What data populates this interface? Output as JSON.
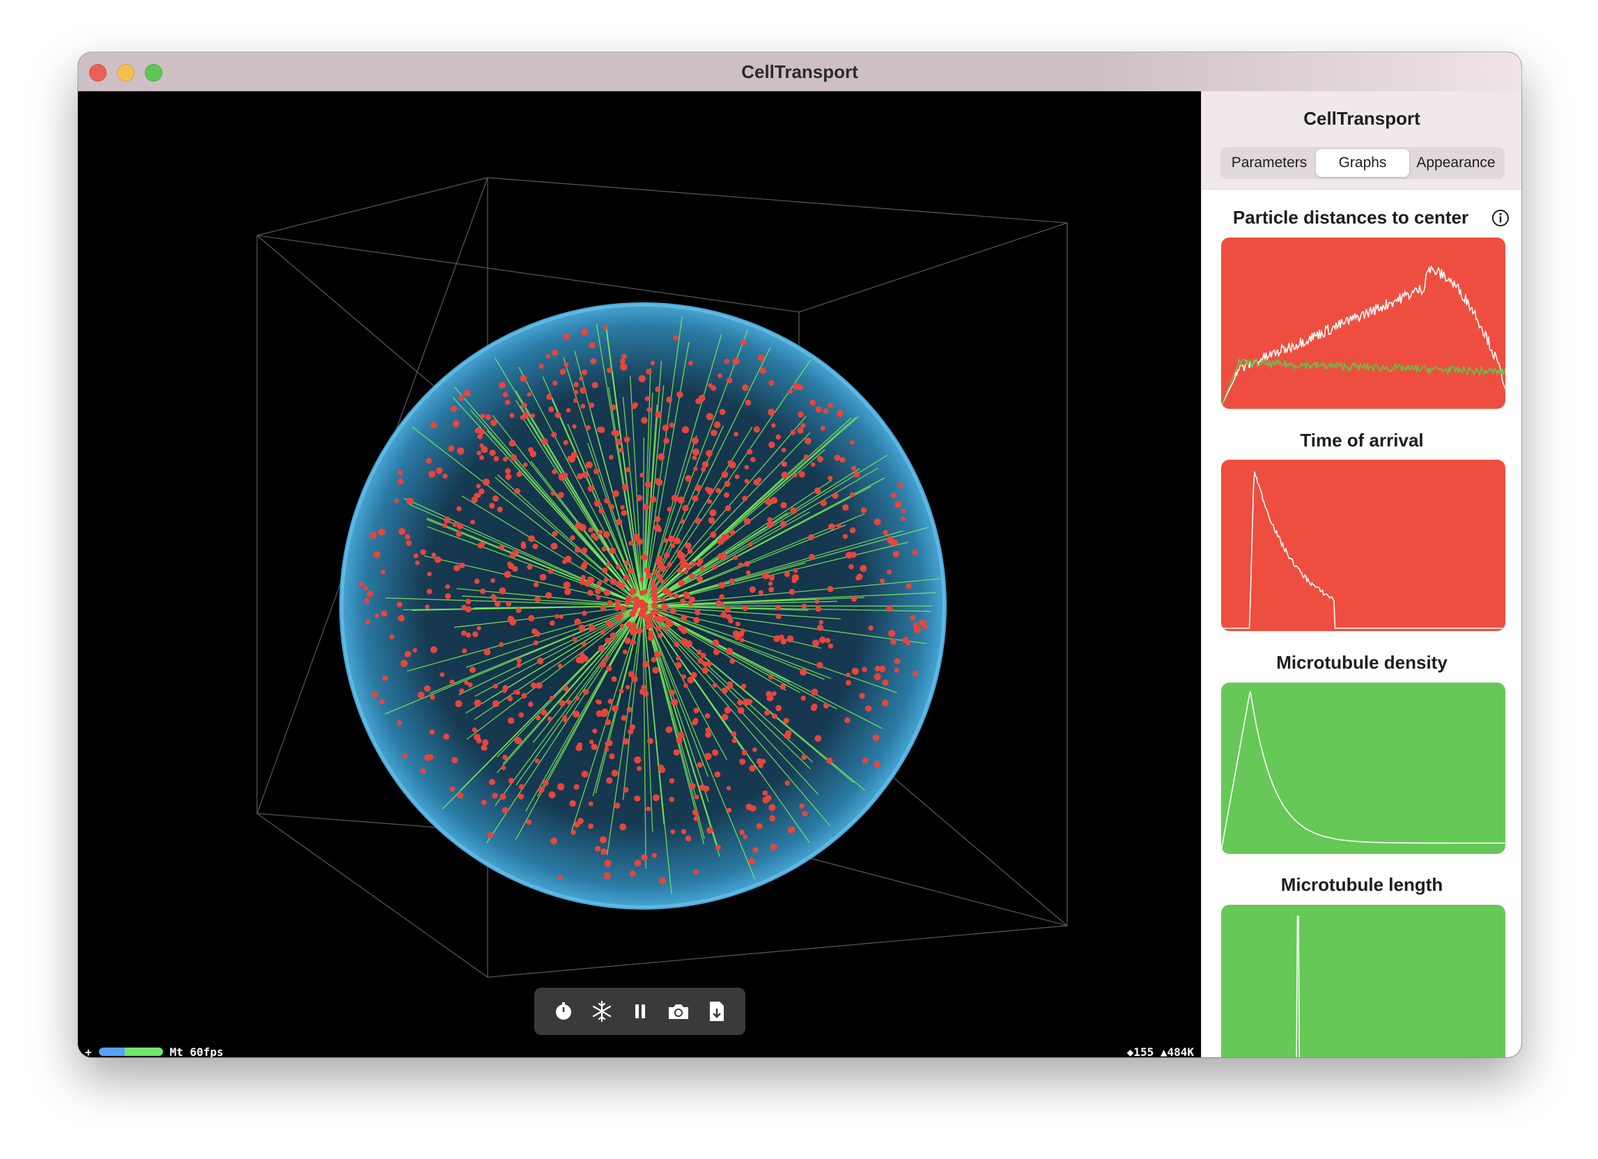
{
  "window": {
    "title": "CellTransport"
  },
  "sidebar": {
    "title": "CellTransport",
    "tabs": [
      {
        "label": "Parameters",
        "active": false
      },
      {
        "label": "Graphs",
        "active": true
      },
      {
        "label": "Appearance",
        "active": false
      }
    ],
    "graphs": [
      {
        "title": "Particle distances to center",
        "color": "#ee4e3f",
        "has_info": true
      },
      {
        "title": "Time of arrival",
        "color": "#ee4e3f",
        "has_info": false
      },
      {
        "title": "Microtubule density",
        "color": "#66c857",
        "has_info": false
      },
      {
        "title": "Microtubule length",
        "color": "#66c857",
        "has_info": false
      }
    ]
  },
  "toolbar": {
    "buttons": [
      {
        "icon": "timer-icon"
      },
      {
        "icon": "snowflake-icon"
      },
      {
        "icon": "pause-icon"
      },
      {
        "icon": "camera-icon"
      },
      {
        "icon": "export-document-icon"
      }
    ]
  },
  "stats": {
    "left": "+",
    "renderer": "Mt 60fps",
    "right": "◆155 ▲484K"
  },
  "colors": {
    "particle": "#e8453c",
    "microtubule": "#7fef5a",
    "cell_membrane": "#4aa8d8",
    "chart_red": "#ee4e3f",
    "chart_green": "#66c857"
  }
}
